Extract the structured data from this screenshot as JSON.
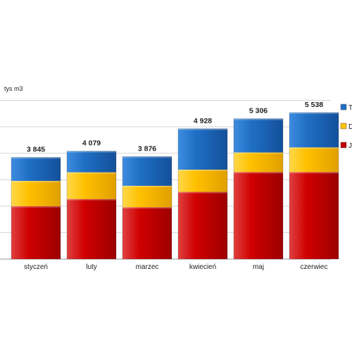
{
  "chart_data": {
    "type": "bar",
    "stacked": true,
    "title": "",
    "xlabel": "",
    "ylabel": "tys m3",
    "categories": [
      "styczeń",
      "luty",
      "marzec",
      "kwiecień",
      "maj",
      "czerwiec"
    ],
    "totals_labels": [
      "3 845",
      "4 079",
      "3 876",
      "4 928",
      "5 306",
      "5 538"
    ],
    "series": [
      {
        "name": "J",
        "color": "#c00000",
        "values": [
          2000,
          2270,
          1960,
          2540,
          3290,
          3290
        ]
      },
      {
        "name": "D",
        "color": "#ffc000",
        "values": [
          955,
          1010,
          810,
          840,
          740,
          930
        ]
      },
      {
        "name": "T",
        "color": "#1f6fc5",
        "values": [
          890,
          799,
          1106,
          1548,
          1276,
          1318
        ]
      }
    ],
    "ylim": [
      0,
      6200
    ],
    "grid": true,
    "legend": "right"
  }
}
